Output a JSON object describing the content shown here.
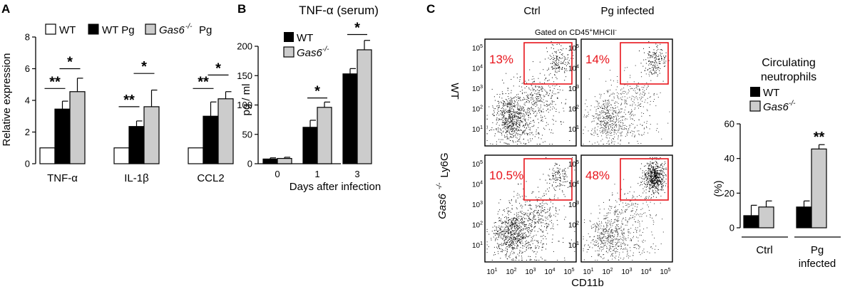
{
  "colors": {
    "wt": "#000000",
    "gas6": "#cccccc",
    "white": "#ffffff",
    "gate": "#e8141b"
  },
  "panels": {
    "a": "A",
    "b": "B",
    "c": "C"
  },
  "chart_data": [
    {
      "id": "A",
      "type": "bar",
      "ylabel": "Relative expression",
      "ylim": [
        0,
        8
      ],
      "yticks": [
        "0",
        "2",
        "4",
        "6",
        "8"
      ],
      "categories": [
        "TNF-α",
        "IL-1β",
        "CCL2"
      ],
      "legend": [
        "WT",
        "WT Pg",
        "Gas6",
        "-/-",
        "Pg"
      ],
      "series": [
        {
          "name": "WT",
          "color": "#ffffff",
          "values": [
            1.0,
            1.0,
            1.0
          ],
          "errors": [
            0,
            0,
            0
          ]
        },
        {
          "name": "WT Pg",
          "color": "#000000",
          "values": [
            3.45,
            2.35,
            3.0
          ],
          "errors": [
            0.5,
            0.35,
            0.9
          ]
        },
        {
          "name": "Gas6-/- Pg",
          "color": "#cccccc",
          "values": [
            4.55,
            3.6,
            4.1
          ],
          "errors": [
            0.85,
            1.05,
            0.45
          ]
        }
      ],
      "significance": [
        {
          "label": "**",
          "group": 0,
          "from": 0,
          "to": 1,
          "y": 4.75
        },
        {
          "label": "*",
          "group": 0,
          "from": 1,
          "to": 2,
          "y": 6.0
        },
        {
          "label": "**",
          "group": 1,
          "from": 0,
          "to": 1,
          "y": 3.6
        },
        {
          "label": "*",
          "group": 1,
          "from": 1,
          "to": 2,
          "y": 5.7
        },
        {
          "label": "**",
          "group": 2,
          "from": 0,
          "to": 1,
          "y": 4.75
        },
        {
          "label": "*",
          "group": 2,
          "from": 1,
          "to": 2,
          "y": 5.6
        }
      ]
    },
    {
      "id": "B",
      "type": "bar",
      "title": "TNF-α (serum)",
      "xlabel": "Days after infection",
      "ylabel": "pg / ml",
      "ylim": [
        0,
        200
      ],
      "yticks": [
        "0",
        "50",
        "100",
        "150",
        "200"
      ],
      "categories": [
        "0",
        "1",
        "3"
      ],
      "legend": [
        "WT",
        "Gas6",
        "-/-"
      ],
      "series": [
        {
          "name": "WT",
          "color": "#000000",
          "values": [
            8,
            62,
            153
          ],
          "errors": [
            2,
            12,
            9
          ]
        },
        {
          "name": "Gas6-/-",
          "color": "#cccccc",
          "values": [
            9,
            96,
            194
          ],
          "errors": [
            2,
            9,
            16
          ]
        }
      ],
      "significance": [
        {
          "label": "*",
          "group": 1,
          "from": 0,
          "to": 1,
          "y": 112
        },
        {
          "label": "*",
          "group": 2,
          "from": 0,
          "to": 1,
          "y": 220
        }
      ]
    },
    {
      "id": "C-flow",
      "type": "scatter",
      "gating": "Gated on CD45",
      "gating_sup1": "+",
      "gating_mid": "MHCII",
      "gating_sup2": "-",
      "columns": [
        "Ctrl",
        "Pg infected"
      ],
      "rows": [
        "WT",
        "Gas6",
        "-/-"
      ],
      "xlabel": "CD11b",
      "ylabel": "Ly6G",
      "axis_base": "10",
      "axis_exponents": [
        "1",
        "2",
        "3",
        "4",
        "5"
      ],
      "gate_percent": [
        "13%",
        "14%",
        "10.5%",
        "48%"
      ],
      "gated_fraction": [
        0.13,
        0.14,
        0.105,
        0.48
      ]
    },
    {
      "id": "C-bar",
      "type": "bar",
      "title_lines": [
        "Circulating",
        "neutrophils"
      ],
      "ylabel": "(%)",
      "ylim": [
        0,
        60
      ],
      "yticks": [
        "0",
        "20",
        "40",
        "60"
      ],
      "categories": [
        "Ctrl",
        "Pg infected"
      ],
      "category_lines": [
        [
          "Ctrl"
        ],
        [
          "Pg",
          "infected"
        ]
      ],
      "legend": [
        "WT",
        "Gas6",
        "-/-"
      ],
      "series": [
        {
          "name": "WT",
          "color": "#000000",
          "values": [
            7,
            12
          ],
          "errors": [
            6,
            3.5
          ]
        },
        {
          "name": "Gas6-/-",
          "color": "#cccccc",
          "values": [
            12,
            45.5
          ],
          "errors": [
            3.5,
            2.5
          ]
        }
      ],
      "significance": [
        {
          "label": "**",
          "group": 1,
          "bar": 1,
          "y": 53
        }
      ]
    }
  ]
}
